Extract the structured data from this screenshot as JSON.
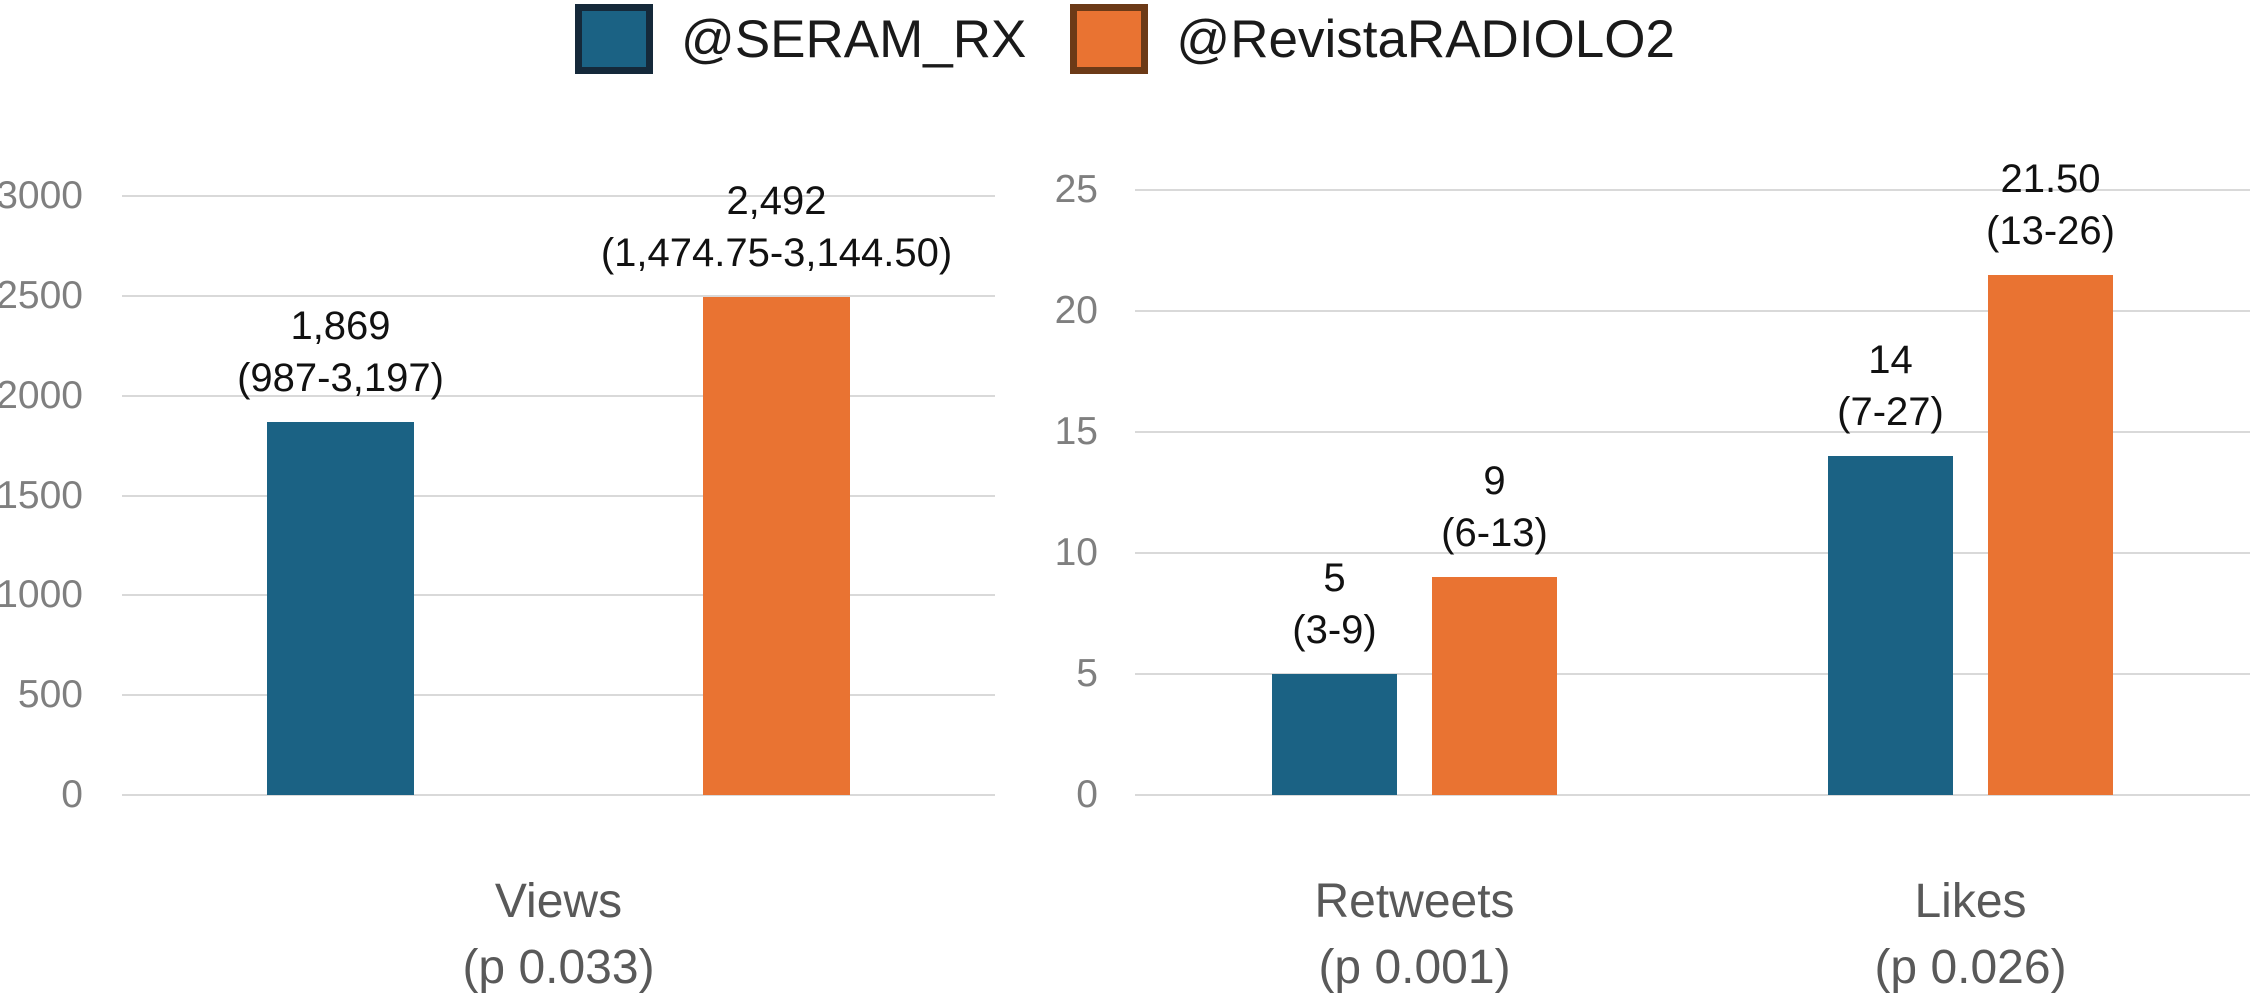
{
  "legend": {
    "items": [
      {
        "label": "@SERAM_RX",
        "color": "#1B6284",
        "border": "#15293A"
      },
      {
        "label": "@RevistaRADIOLO2",
        "color": "#E97332",
        "border": "#6C3A17"
      }
    ]
  },
  "colors": {
    "background": "#FFFFFF",
    "grid": "#D9D9D9",
    "axis_text": "#7F7F7F",
    "category_text": "#595959",
    "data_label_text": "#111111"
  },
  "chart_data": [
    {
      "type": "bar",
      "ylim": [
        0,
        3000
      ],
      "yticks": [
        0,
        500,
        1000,
        1500,
        2000,
        2500,
        3000
      ],
      "grid": true,
      "legend_position": "top",
      "categories": [
        {
          "label": "Views",
          "sublabel": "(p 0.033)"
        }
      ],
      "series": [
        {
          "name": "@SERAM_RX",
          "values": [
            1869
          ],
          "data_labels": [
            [
              "1,869",
              "(987-3,197)"
            ]
          ]
        },
        {
          "name": "@RevistaRADIOLO2",
          "values": [
            2492
          ],
          "data_labels": [
            [
              "2,492",
              "(1,474.75-3,144.50)"
            ]
          ]
        }
      ]
    },
    {
      "type": "bar",
      "ylim": [
        0,
        25
      ],
      "yticks": [
        0,
        5,
        10,
        15,
        20,
        25
      ],
      "grid": true,
      "legend_position": "top",
      "categories": [
        {
          "label": "Retweets",
          "sublabel": "(p 0.001)"
        },
        {
          "label": "Likes",
          "sublabel": "(p 0.026)"
        }
      ],
      "series": [
        {
          "name": "@SERAM_RX",
          "values": [
            5,
            14
          ],
          "data_labels": [
            [
              "5",
              "(3-9)"
            ],
            [
              "14",
              "(7-27)"
            ]
          ]
        },
        {
          "name": "@RevistaRADIOLO2",
          "values": [
            9,
            21.5
          ],
          "data_labels": [
            [
              "9",
              "(6-13)"
            ],
            [
              "21.50",
              "(13-26)"
            ]
          ]
        }
      ]
    }
  ]
}
